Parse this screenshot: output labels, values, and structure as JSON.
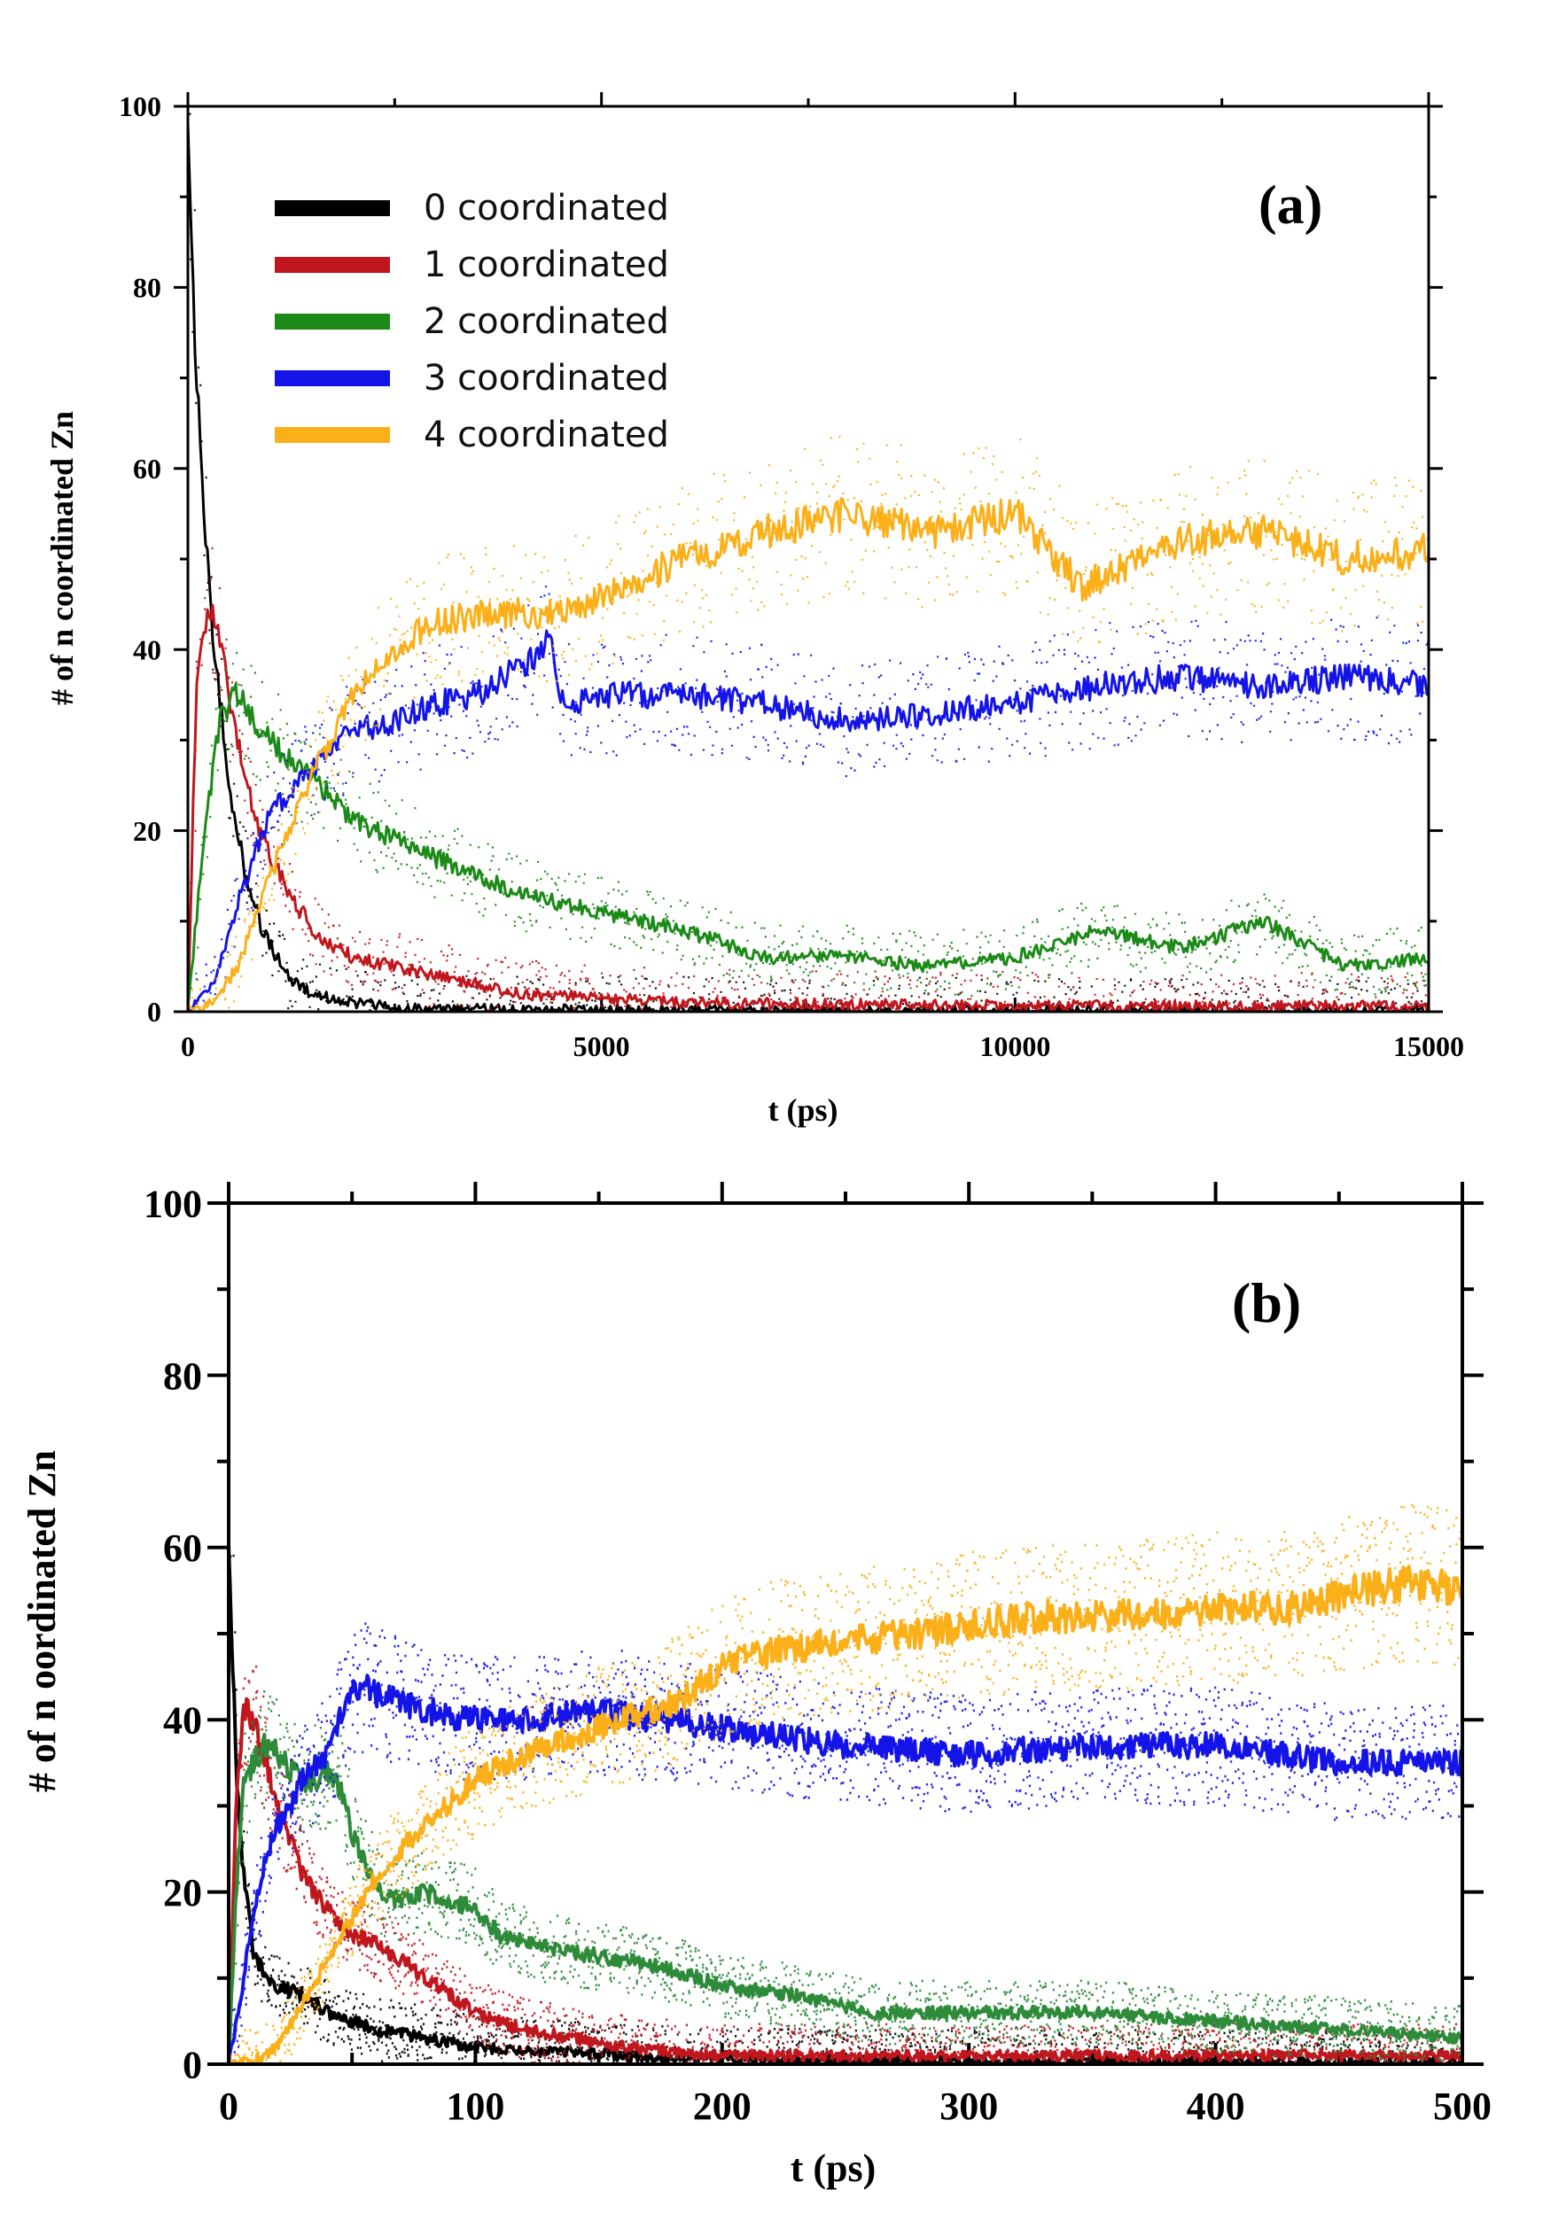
{
  "chart_data": [
    {
      "type": "line",
      "panel_label": "(a)",
      "title": "",
      "xlabel": "t (ps)",
      "ylabel": "# of n coordinated Zn",
      "xlim": [
        0,
        15000
      ],
      "ylim": [
        0,
        100
      ],
      "xticks": [
        0,
        5000,
        10000,
        15000
      ],
      "yticks": [
        0,
        20,
        40,
        60,
        80,
        100
      ],
      "xtick_labels": [
        "0",
        "5000",
        "10000",
        "15000"
      ],
      "ytick_labels": [
        "0",
        "20",
        "40",
        "60",
        "80",
        "100"
      ],
      "grid": false,
      "legend_position": "top-left",
      "series": [
        {
          "name": "0 coordinated",
          "color": "#000000",
          "x": [
            0,
            100,
            200,
            300,
            500,
            700,
            900,
            1200,
            1500,
            2000,
            2500,
            3000,
            4000,
            5000,
            7000,
            10000,
            15000
          ],
          "values": [
            96,
            70,
            55,
            42,
            25,
            15,
            9,
            4,
            2,
            1,
            0.5,
            0.3,
            0.2,
            0.2,
            0.1,
            0.1,
            0.1
          ]
        },
        {
          "name": "1 coordinated",
          "color": "#c0161d",
          "x": [
            0,
            100,
            250,
            400,
            600,
            800,
            1000,
            1300,
            1600,
            2000,
            2500,
            3000,
            3500,
            4000,
            5000,
            6000,
            8000,
            10000,
            12000,
            15000
          ],
          "values": [
            0,
            35,
            45,
            40,
            30,
            22,
            17,
            12,
            8,
            6,
            5,
            4,
            3,
            2,
            1.5,
            1,
            0.8,
            0.7,
            0.6,
            0.6
          ]
        },
        {
          "name": "2 coordinated",
          "color": "#1b8a17",
          "x": [
            0,
            200,
            400,
            600,
            800,
            1000,
            1300,
            1600,
            2000,
            2500,
            3000,
            3500,
            4000,
            4500,
            5000,
            6000,
            7000,
            8000,
            9000,
            10000,
            11000,
            12000,
            13000,
            14000,
            15000
          ],
          "values": [
            0,
            20,
            33,
            35,
            32,
            30,
            27,
            25,
            21,
            19,
            17,
            15,
            13,
            12,
            11,
            9,
            6,
            6,
            5,
            6,
            9,
            7,
            10,
            5,
            6
          ]
        },
        {
          "name": "3 coordinated",
          "color": "#1414e8",
          "x": [
            0,
            300,
            600,
            1000,
            1500,
            2000,
            2500,
            3000,
            3500,
            4000,
            4400,
            4500,
            5000,
            6000,
            7000,
            8000,
            9000,
            10000,
            11000,
            12000,
            13000,
            14000,
            15000
          ],
          "values": [
            0,
            3,
            12,
            22,
            27,
            31,
            32,
            34,
            35,
            38,
            41,
            34,
            35,
            35,
            34,
            32,
            33,
            34,
            36,
            37,
            36,
            37,
            36
          ]
        },
        {
          "name": "4 coordinated",
          "color": "#fbb01a",
          "x": [
            0,
            300,
            600,
            1000,
            1500,
            2000,
            2500,
            3000,
            3500,
            4000,
            4500,
            5000,
            6000,
            7000,
            8000,
            9000,
            10000,
            10800,
            11500,
            12000,
            13000,
            14000,
            15000
          ],
          "values": [
            0,
            1,
            5,
            15,
            26,
            35,
            40,
            43,
            44,
            44,
            44,
            46,
            50,
            53,
            55,
            53,
            55,
            47,
            50,
            52,
            53,
            50,
            51
          ]
        }
      ]
    },
    {
      "type": "line",
      "panel_label": "(b)",
      "title": "",
      "xlabel": "t (ps)",
      "ylabel": "# of n oordinated Zn",
      "xlim": [
        0,
        500
      ],
      "ylim": [
        0,
        100
      ],
      "xticks": [
        0,
        100,
        200,
        300,
        400,
        500
      ],
      "yticks": [
        0,
        20,
        40,
        60,
        80,
        100
      ],
      "xtick_labels": [
        "0",
        "100",
        "200",
        "300",
        "400",
        "500"
      ],
      "ytick_labels": [
        "0",
        "20",
        "40",
        "60",
        "80",
        "100"
      ],
      "grid": false,
      "legend_position": "none",
      "series": [
        {
          "name": "0 coordinated",
          "color": "#000000",
          "x": [
            0,
            3,
            6,
            10,
            15,
            20,
            30,
            40,
            50,
            60,
            80,
            100,
            130,
            160,
            200,
            300,
            500
          ],
          "values": [
            60,
            35,
            22,
            13,
            10,
            9,
            8,
            6,
            5,
            4,
            3,
            2,
            1.5,
            1,
            0.5,
            0.3,
            0.2
          ]
        },
        {
          "name": "1 coordinated",
          "color": "#c0161d",
          "x": [
            0,
            3,
            6,
            10,
            15,
            20,
            25,
            30,
            40,
            50,
            60,
            70,
            80,
            90,
            100,
            120,
            140,
            160,
            200,
            300,
            500
          ],
          "values": [
            0,
            30,
            42,
            40,
            35,
            30,
            26,
            22,
            18,
            15,
            14,
            12,
            10,
            8,
            6,
            4,
            3,
            2,
            1,
            1,
            1
          ]
        },
        {
          "name": "2 coordinated",
          "color": "#2e8b3a",
          "x": [
            0,
            3,
            6,
            10,
            15,
            20,
            25,
            30,
            35,
            40,
            45,
            50,
            60,
            70,
            80,
            100,
            110,
            120,
            140,
            160,
            180,
            200,
            230,
            260,
            300,
            350,
            400,
            450,
            500
          ],
          "values": [
            0,
            20,
            32,
            35,
            37,
            36,
            34,
            33,
            33,
            34,
            32,
            27,
            20,
            19,
            20,
            18,
            15,
            14,
            13,
            12,
            11,
            9,
            8,
            6,
            6,
            6,
            5,
            4,
            3
          ]
        },
        {
          "name": "3 coordinated",
          "color": "#1414e8",
          "x": [
            0,
            5,
            10,
            15,
            20,
            25,
            30,
            40,
            45,
            50,
            55,
            60,
            70,
            80,
            100,
            120,
            150,
            200,
            250,
            300,
            350,
            400,
            450,
            500
          ],
          "values": [
            0,
            8,
            18,
            24,
            28,
            30,
            33,
            36,
            40,
            43,
            44,
            43,
            42,
            41,
            40,
            40,
            41,
            39,
            37,
            36,
            37,
            37,
            35,
            35
          ]
        },
        {
          "name": "4 coordinated",
          "color": "#fbb01a",
          "x": [
            0,
            10,
            20,
            30,
            40,
            50,
            60,
            80,
            100,
            120,
            140,
            160,
            180,
            200,
            220,
            250,
            280,
            300,
            330,
            360,
            400,
            430,
            460,
            480,
            500
          ],
          "values": [
            0,
            0.5,
            2,
            7,
            12,
            17,
            22,
            28,
            33,
            36,
            38,
            40,
            42,
            46,
            48,
            49,
            50,
            51,
            52,
            52,
            53,
            53,
            55,
            56,
            55
          ]
        }
      ]
    }
  ]
}
